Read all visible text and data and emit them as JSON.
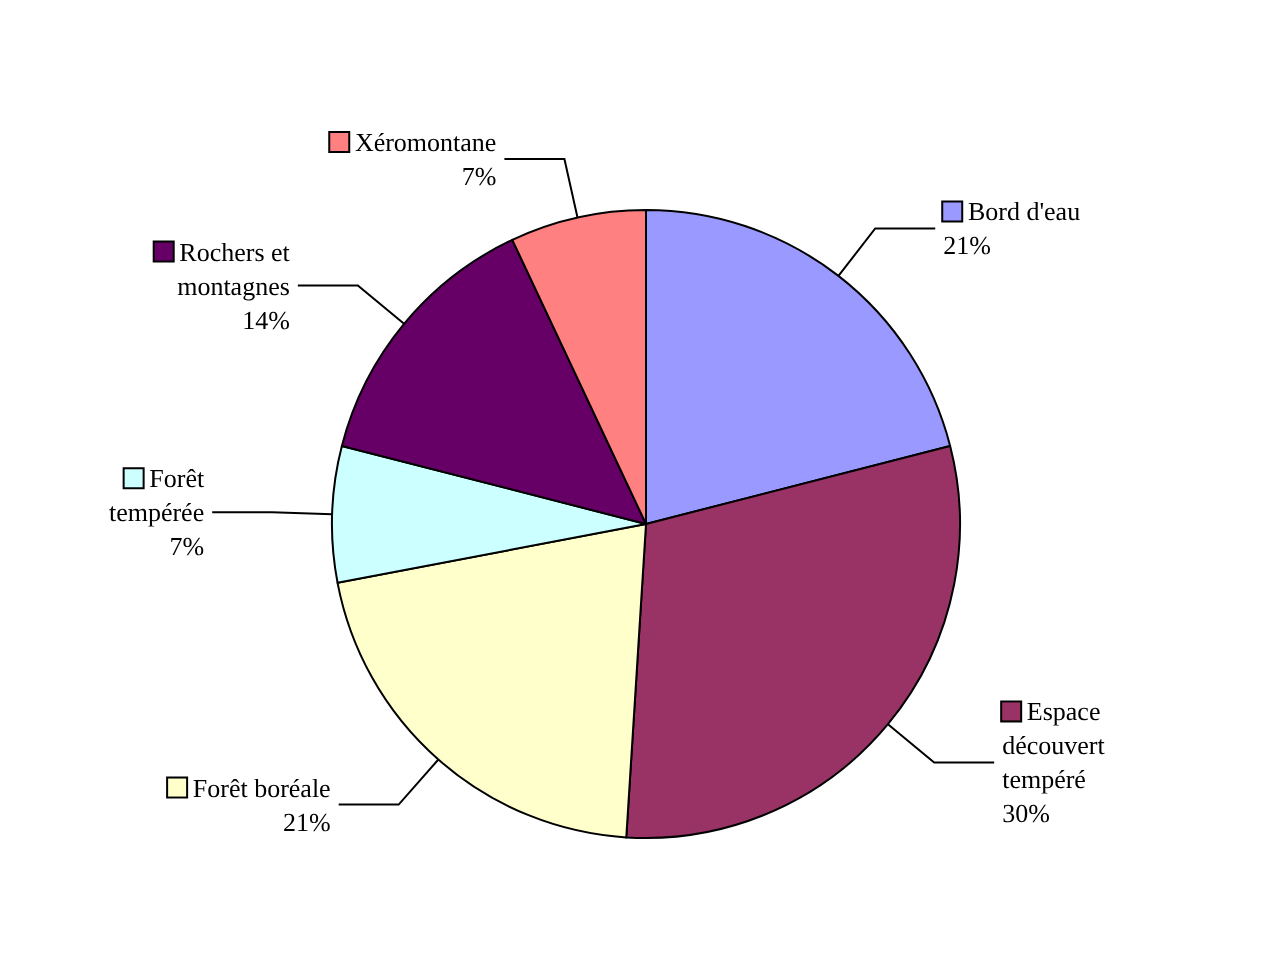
{
  "chart_data": {
    "type": "pie",
    "categories": [
      "Bord d'eau",
      "Espace découvert tempéré",
      "Forêt boréale",
      "Forêt tempérée",
      "Rochers et montagnes",
      "Xéromontane"
    ],
    "values": [
      21,
      30,
      21,
      7,
      14,
      7
    ],
    "colors": [
      "#9999ff",
      "#993366",
      "#ffffcc",
      "#ccffff",
      "#660066",
      "#ff8080"
    ],
    "value_labels": [
      "21%",
      "30%",
      "21%",
      "7%",
      "14%",
      "7%"
    ],
    "legend": "top left"
  }
}
